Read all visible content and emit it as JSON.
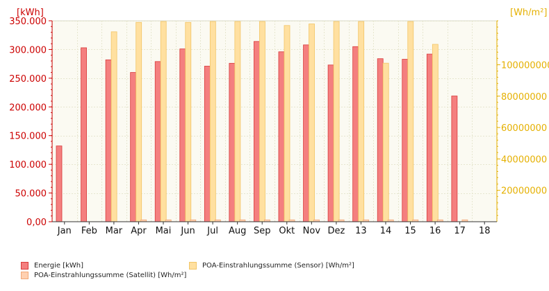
{
  "chart_data": {
    "type": "bar",
    "categories": [
      "Jan",
      "Feb",
      "Mar",
      "Apr",
      "Mai",
      "Jun",
      "Jul",
      "Aug",
      "Sep",
      "Okt",
      "Nov",
      "Dez",
      "13",
      "14",
      "15",
      "16",
      "17",
      "18"
    ],
    "left_axis": {
      "unit_label": "[kWh]",
      "ylim": [
        0,
        350000
      ],
      "ticks": [
        0,
        50000,
        100000,
        150000,
        200000,
        250000,
        300000,
        350000
      ],
      "tick_labels": [
        "0,00",
        "50.000",
        "100.000",
        "150.000",
        "200.000",
        "250.000",
        "300.000",
        "350.000"
      ],
      "color": "#cc0000"
    },
    "right_axis": {
      "unit_label": "[Wh/m²]",
      "ylim": [
        0,
        128000000
      ],
      "ticks": [
        20000000,
        40000000,
        60000000,
        80000000,
        100000000
      ],
      "tick_labels": [
        "20000000",
        "40000000",
        "60000000",
        "80000000",
        "100000000"
      ],
      "color": "#e5b000"
    },
    "series": [
      {
        "name": "Energie [kWh]",
        "axis": "left",
        "color": "#f47f7f",
        "edge": "#d83a3a",
        "values": [
          132000,
          303000,
          282000,
          260000,
          279000,
          301000,
          271000,
          276000,
          314000,
          296000,
          308000,
          273000,
          305000,
          284000,
          283000,
          292000,
          219000,
          null
        ]
      },
      {
        "name": "POA-Einstrahlungssumme (Sensor) [Wh/m²]",
        "axis": "right",
        "color": "#ffe0a0",
        "edge": "#f2c566",
        "values": [
          null,
          null,
          121000000,
          127000000,
          128000000,
          127000000,
          128000000,
          128000000,
          128000000,
          125000000,
          126000000,
          128000000,
          128000000,
          101000000,
          128000000,
          113000000,
          null,
          null
        ]
      },
      {
        "name": "POA-Einstrahlungssumme (Satellit) [Wh/m²]",
        "axis": "right",
        "color": "#ffd0b0",
        "edge": "#f0a878",
        "values": [
          null,
          null,
          null,
          1200000,
          1200000,
          1200000,
          1200000,
          1200000,
          1200000,
          1200000,
          1200000,
          1200000,
          1200000,
          1200000,
          1200000,
          1200000,
          1200000,
          null
        ]
      }
    ],
    "grid": true,
    "legend_position": "bottom"
  }
}
